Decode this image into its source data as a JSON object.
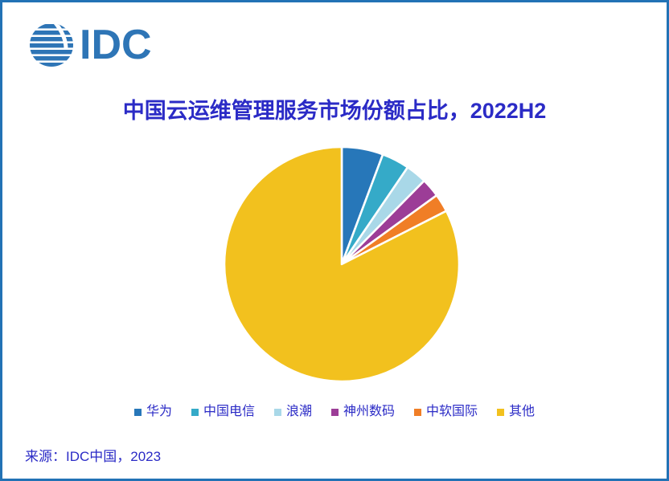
{
  "page": {
    "background": "#ffffff",
    "border_color": "#2272b5"
  },
  "logo": {
    "text": "IDC",
    "color": "#2e75b6"
  },
  "title": {
    "text": "中国云运维管理服务市场份额占比，2022H2",
    "color": "#2b2bc6"
  },
  "source": {
    "text": "来源：IDC中国，2023"
  },
  "chart_data": {
    "type": "pie",
    "title": "中国云运维管理服务市场份额占比，2022H2",
    "labels": [
      "华为",
      "中国电信",
      "浪潮",
      "神州数码",
      "中软国际",
      "其他"
    ],
    "values": [
      5.7,
      3.8,
      2.9,
      2.6,
      2.5,
      82.5
    ],
    "unit": "%",
    "colors": [
      "#2777b9",
      "#35aac8",
      "#a9d8e8",
      "#9c3d97",
      "#f07e26",
      "#f2c11e"
    ],
    "start_angle_deg": 0,
    "direction": "clockwise",
    "slice_gap_color": "#ffffff",
    "legend_position": "bottom",
    "data_labels": false
  }
}
